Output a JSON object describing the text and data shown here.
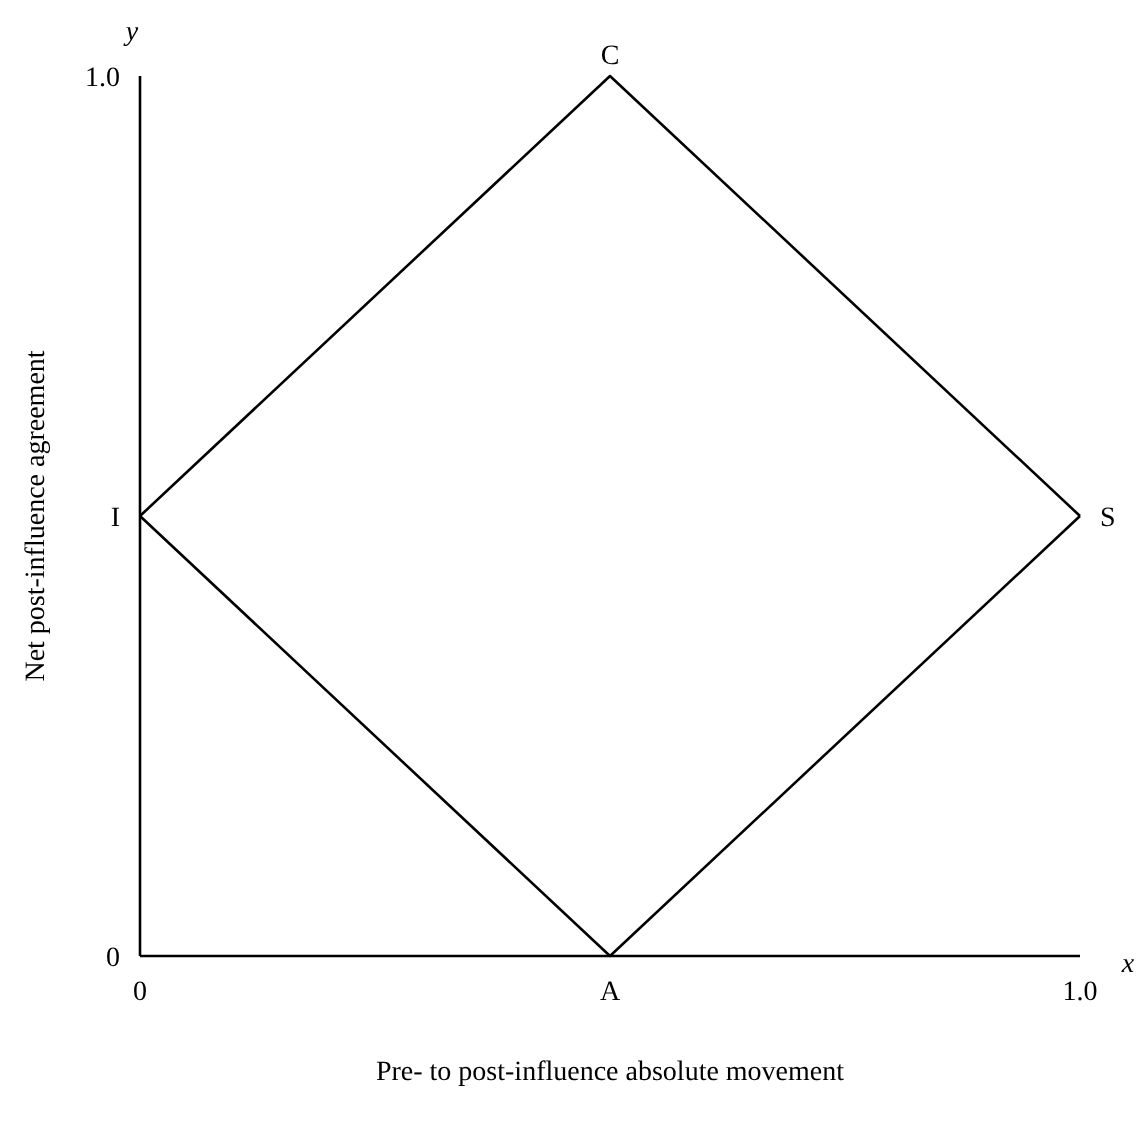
{
  "chart_data": {
    "type": "line",
    "xlabel": "Pre- to post-influence absolute movement",
    "ylabel": "Net post-influence agreement",
    "xlim": [
      0,
      1
    ],
    "ylim": [
      0,
      1
    ],
    "xticks": [
      0,
      {
        "value": 0.5,
        "label": "A"
      },
      {
        "value": 1,
        "label": "1.0"
      }
    ],
    "yticks": [
      0,
      {
        "value": 0.5,
        "label": "I"
      },
      {
        "value": 1,
        "label": "1.0"
      }
    ],
    "series": [
      {
        "color": "#000000",
        "x": [
          0,
          0.5,
          1
        ],
        "values": [
          0.5,
          1,
          0.5
        ]
      },
      {
        "color": "#000000",
        "x": [
          0,
          0.5,
          1
        ],
        "values": [
          0.5,
          0,
          0.5
        ]
      }
    ],
    "annotations": [
      {
        "text": "C",
        "x": 0.5,
        "y": 1
      },
      {
        "text": "S",
        "x": 1,
        "y": 0.5
      },
      "x",
      "y"
    ],
    "grid": false,
    "marker": "none",
    "line_style": "solid"
  }
}
